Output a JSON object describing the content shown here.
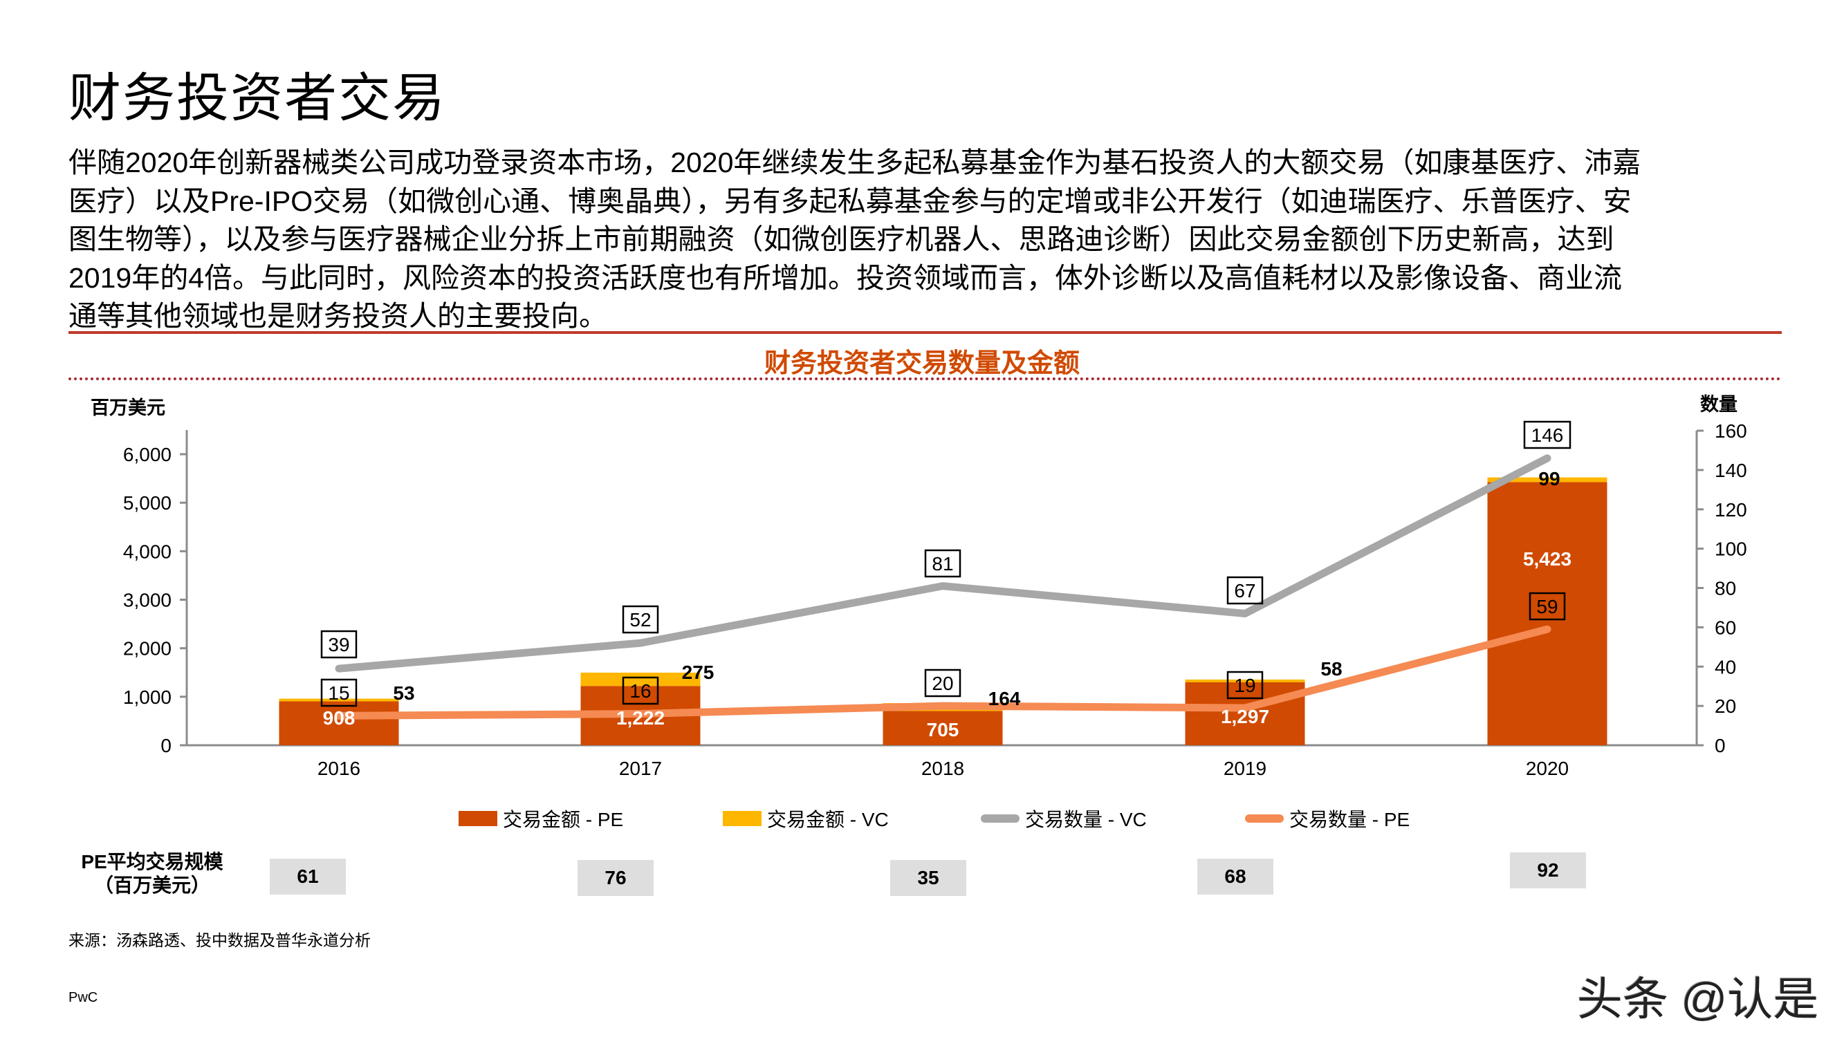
{
  "page": {
    "title": "财务投资者交易",
    "paragraph_lines": [
      "伴随2020年创新器械类公司成功登录资本市场，2020年继续发生多起私募基金作为基石投资人的大额交易（如康基医疗、沛嘉",
      "医疗）以及Pre-IPO交易（如微创心通、博奥晶典），另有多起私募基金参与的定增或非公开发行（如迪瑞医疗、乐普医疗、安",
      "图生物等），以及参与医疗器械企业分拆上市前期融资（如微创医疗机器人、思路迪诊断）因此交易金额创下历史新高，达到",
      "2019年的4倍。与此同时，风险资本的投资活跃度也有所增加。投资领域而言，体外诊断以及高值耗材以及影像设备、商业流",
      "通等其他领域也是财务投资人的主要投向。"
    ],
    "source": "来源：汤森路透、投中数据及普华永道分析",
    "footer": "PwC",
    "watermark": "头条 @认是"
  },
  "colors": {
    "pe_amount": "#d04a02",
    "vc_amount": "#ffb600",
    "vc_count_line": "#a7a7a7",
    "pe_count_line": "#f58a53",
    "title_accent": "#d04a02",
    "rule_red": "#c0392b",
    "avg_box_bg": "#dedede"
  },
  "chart_data": {
    "type": "bar",
    "title": "财务投资者交易数量及金额",
    "categories": [
      "2016",
      "2017",
      "2018",
      "2019",
      "2020"
    ],
    "xlabel": "",
    "ylabel": "百万美元",
    "ylabel_right": "数量",
    "ylim": [
      0,
      6000
    ],
    "ylim_right": [
      0,
      160
    ],
    "yticks": [
      "0",
      "1,000",
      "2,000",
      "3,000",
      "4,000",
      "5,000",
      "6,000"
    ],
    "yticks_right": [
      "0",
      "20",
      "40",
      "60",
      "80",
      "100",
      "120",
      "140",
      "160"
    ],
    "stacked": true,
    "grid": false,
    "legend_position": "bottom",
    "series": [
      {
        "name": "交易金额 - PE",
        "type": "bar",
        "axis": "left",
        "values": [
          908,
          1222,
          705,
          1297,
          5423
        ],
        "labels": [
          "908",
          "1,222",
          "705",
          "1,297",
          "5,423"
        ]
      },
      {
        "name": "交易金额 - VC",
        "type": "bar",
        "axis": "left",
        "values": [
          53,
          275,
          164,
          58,
          99
        ],
        "labels": [
          "53",
          "275",
          "164",
          "58",
          "99"
        ]
      },
      {
        "name": "交易数量 - VC",
        "type": "line",
        "axis": "right",
        "values": [
          39,
          52,
          81,
          67,
          146
        ],
        "labels": [
          "39",
          "52",
          "81",
          "67",
          "146"
        ]
      },
      {
        "name": "交易数量 - PE",
        "type": "line",
        "axis": "right",
        "values": [
          15,
          16,
          20,
          19,
          59
        ],
        "labels": [
          "15",
          "16",
          "20",
          "19",
          "59"
        ]
      }
    ],
    "legend": [
      "交易金额 - PE",
      "交易金额 - VC",
      "交易数量 - VC",
      "交易数量 - PE"
    ],
    "pe_avg_deal_size": {
      "label_line1": "PE平均交易规模",
      "label_line2": "（百万美元）",
      "values": [
        "61",
        "76",
        "35",
        "68",
        "92"
      ]
    }
  }
}
